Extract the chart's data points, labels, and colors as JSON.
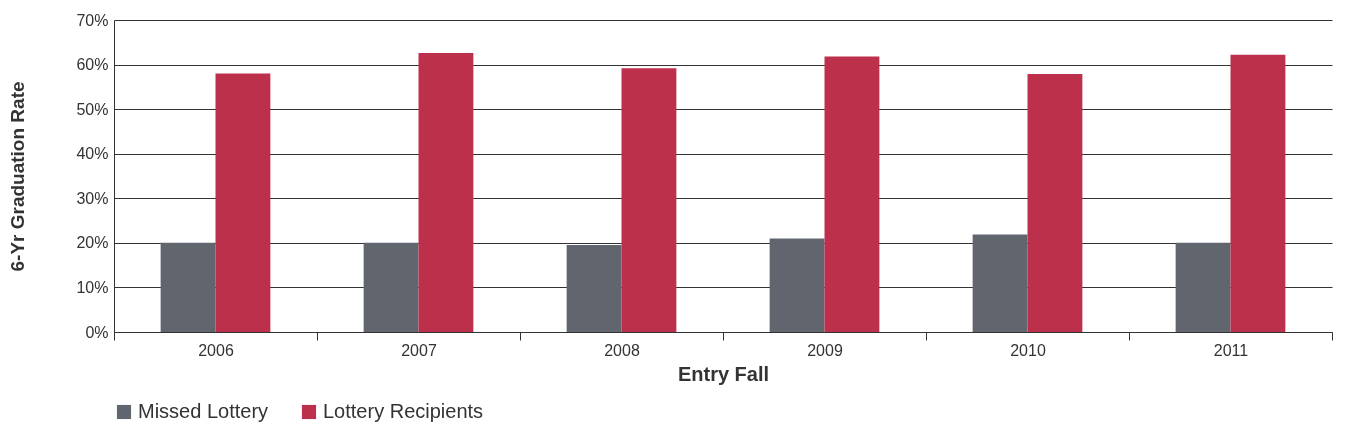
{
  "chart_data": {
    "type": "bar",
    "xlabel": "Entry Fall",
    "ylabel": "6-Yr Graduation Rate",
    "categories": [
      "2006",
      "2007",
      "2008",
      "2009",
      "2010",
      "2011"
    ],
    "series": [
      {
        "name": "Missed Lottery",
        "color": "#61666e",
        "values": [
          20,
          20,
          19.5,
          21,
          21.9,
          20
        ]
      },
      {
        "name": "Lottery Recipients",
        "color": "#bc304c",
        "values": [
          58,
          62.6,
          59.2,
          61.8,
          57.9,
          62.2
        ]
      }
    ],
    "ylim": [
      0,
      70
    ],
    "yticks": [
      {
        "value": 0,
        "label": "0%"
      },
      {
        "value": 10,
        "label": "10%"
      },
      {
        "value": 20,
        "label": "20%"
      },
      {
        "value": 30,
        "label": "30%"
      },
      {
        "value": 40,
        "label": "40%"
      },
      {
        "value": 50,
        "label": "50%"
      },
      {
        "value": 60,
        "label": "60%"
      },
      {
        "value": 70,
        "label": "70%"
      }
    ],
    "grid": "y",
    "legend": "bottom"
  }
}
